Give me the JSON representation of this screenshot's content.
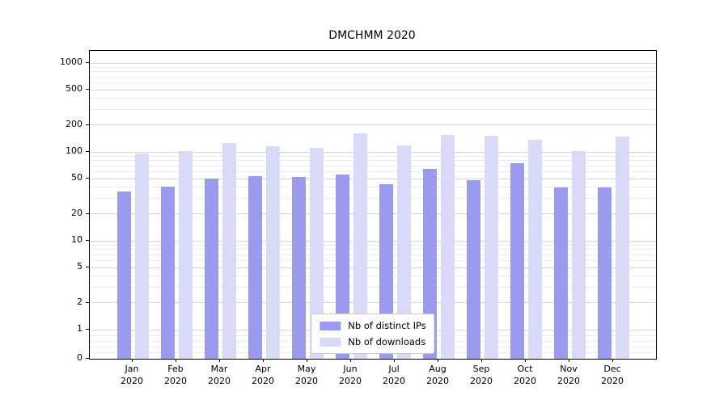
{
  "title": "DMCHMM 2020",
  "chart_data": {
    "type": "bar",
    "title": "DMCHMM 2020",
    "categories": [
      "Jan",
      "Feb",
      "Mar",
      "Apr",
      "May",
      "Jun",
      "Jul",
      "Aug",
      "Sep",
      "Oct",
      "Nov",
      "Dec"
    ],
    "year": "2020",
    "series": [
      {
        "name": "Nb of distinct IPs",
        "color": "#9a9aee",
        "values": [
          36,
          41,
          50,
          53,
          52,
          56,
          43,
          64,
          48,
          74,
          40,
          40
        ]
      },
      {
        "name": "Nb of downloads",
        "color": "#d9d9f8",
        "values": [
          95,
          103,
          127,
          115,
          112,
          163,
          118,
          155,
          153,
          138,
          103,
          150
        ]
      }
    ],
    "y_ticks": [
      0,
      1,
      2,
      5,
      10,
      20,
      50,
      100,
      200,
      500,
      1000
    ],
    "y_scale": "symlog",
    "ylim": [
      0,
      1000
    ],
    "grid": true,
    "legend_position": "lower center"
  }
}
